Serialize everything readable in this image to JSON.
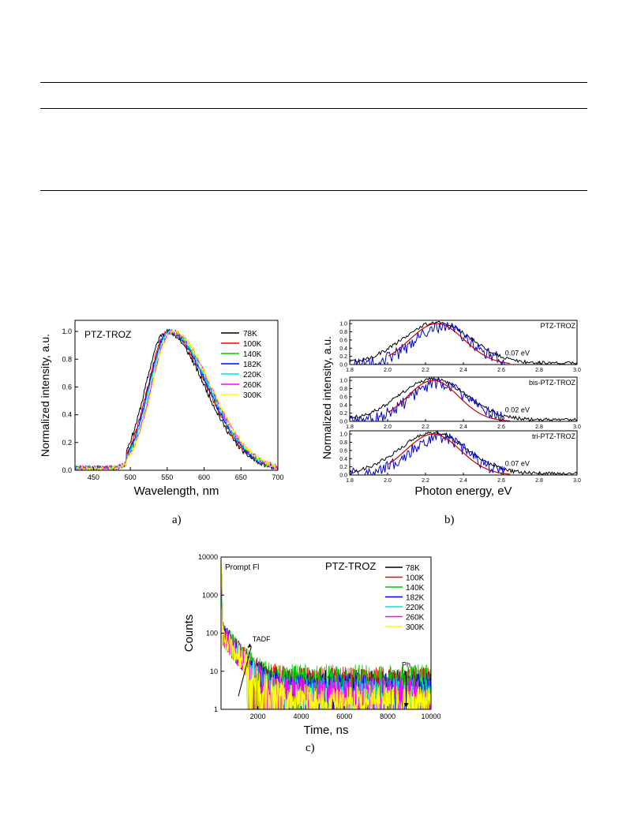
{
  "figure_labels": [
    "a)",
    "b)",
    "c)"
  ],
  "chart_data": [
    {
      "type": "line",
      "title": "PTZ-TROZ",
      "xlabel": "Wavelength, nm",
      "ylabel": "Normalized intensity, a.u.",
      "xlim": [
        425,
        700
      ],
      "ylim": [
        0,
        1.08
      ],
      "xticks": [
        450,
        500,
        550,
        600,
        650,
        700
      ],
      "yticks": [
        0.0,
        0.2,
        0.4,
        0.6,
        0.8,
        1.0
      ],
      "legend_position": "top-right",
      "x": [
        425,
        450,
        475,
        490,
        500,
        510,
        520,
        530,
        540,
        550,
        560,
        570,
        580,
        590,
        600,
        610,
        620,
        630,
        640,
        650,
        660,
        670,
        680,
        690,
        700
      ],
      "series": [
        {
          "name": "78K",
          "color": "#000000",
          "peak": 548
        },
        {
          "name": "100K",
          "color": "#ff0000",
          "peak": 551
        },
        {
          "name": "140K",
          "color": "#00cc00",
          "peak": 553
        },
        {
          "name": "182K",
          "color": "#0000ff",
          "peak": 552
        },
        {
          "name": "220K",
          "color": "#00e5e5",
          "peak": 554
        },
        {
          "name": "260K",
          "color": "#ff00ff",
          "peak": 556
        },
        {
          "name": "300K",
          "color": "#ffff00",
          "peak": 557
        }
      ]
    },
    {
      "type": "line",
      "xlabel": "Photon energy, eV",
      "ylabel": "Normalized intensity, a.u.",
      "xlim": [
        1.8,
        3.0
      ],
      "xticks": [
        1.8,
        2.0,
        2.2,
        2.4,
        2.6,
        2.8,
        3.0
      ],
      "yticks": [
        0.0,
        0.2,
        0.4,
        0.6,
        0.8,
        1.0
      ],
      "panels": [
        {
          "name": "PTZ-TROZ",
          "annotation": "0.07 eV",
          "fit_peak": 2.26,
          "fit_width": 0.17
        },
        {
          "name": "bis-PTZ-TROZ",
          "annotation": "0.02 eV",
          "fit_peak": 2.24,
          "fit_width": 0.16
        },
        {
          "name": "tri-PTZ-TROZ",
          "annotation": "0.07 eV",
          "fit_peak": 2.24,
          "fit_width": 0.17
        }
      ],
      "series_colors": {
        "data": "#000000",
        "fit": "#cc0000",
        "delayed": "#0000cc"
      }
    },
    {
      "type": "line",
      "title": "PTZ-TROZ",
      "xlabel": "Time, ns",
      "ylabel": "Counts",
      "xlim": [
        300,
        10000
      ],
      "ylim": [
        1,
        10000
      ],
      "yscale": "log",
      "xticks": [
        2000,
        4000,
        6000,
        8000,
        10000
      ],
      "yticks": [
        1,
        10,
        100,
        1000,
        10000
      ],
      "legend_position": "top-right",
      "annotations": [
        "Prompt Fl",
        "TADF",
        "Ph"
      ],
      "series": [
        {
          "name": "78K",
          "color": "#000000",
          "floor": 5
        },
        {
          "name": "100K",
          "color": "#ff0000",
          "floor": 6
        },
        {
          "name": "140K",
          "color": "#00cc00",
          "floor": 7
        },
        {
          "name": "182K",
          "color": "#0000ff",
          "floor": 4
        },
        {
          "name": "220K",
          "color": "#00e5e5",
          "floor": 3
        },
        {
          "name": "260K",
          "color": "#ff00ff",
          "floor": 3
        },
        {
          "name": "300K",
          "color": "#ffff00",
          "floor": 2
        }
      ]
    }
  ]
}
